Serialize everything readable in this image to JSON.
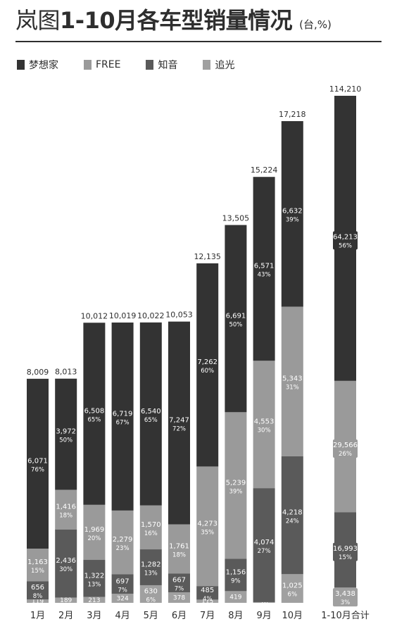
{
  "title": {
    "prefix": "岚图",
    "bold": "1-10月各车型销量情况",
    "unit": "(台,%)"
  },
  "colors": {
    "text": "#2e2e2e",
    "bar_text": "#ffffff"
  },
  "chart_data": {
    "type": "bar",
    "stacked": true,
    "categories": [
      "1月",
      "2月",
      "3月",
      "4月",
      "5月",
      "6月",
      "7月",
      "8月",
      "9月",
      "10月"
    ],
    "series": [
      {
        "name": "追光",
        "color": "#a0a0a0",
        "values": [
          119,
          189,
          213,
          324,
          630,
          378,
          115,
          419,
          26,
          1025
        ],
        "percent_labels": [
          "1%",
          "2%",
          "2%",
          "3%",
          "6%",
          "4%",
          "1%",
          "3%",
          "0%",
          "6%"
        ]
      },
      {
        "name": "知音",
        "color": "#5a5a5a",
        "values": [
          656,
          2436,
          1322,
          697,
          1282,
          667,
          485,
          1156,
          4074,
          4218
        ],
        "percent_labels": [
          "8%",
          "30%",
          "13%",
          "7%",
          "13%",
          "7%",
          "4%",
          "9%",
          "27%",
          "24%"
        ]
      },
      {
        "name": "FREE",
        "color": "#9a9a9a",
        "values": [
          1163,
          1416,
          1969,
          2279,
          1570,
          1761,
          4273,
          5239,
          4553,
          5343
        ],
        "percent_labels": [
          "15%",
          "18%",
          "20%",
          "23%",
          "16%",
          "18%",
          "35%",
          "39%",
          "30%",
          "31%"
        ]
      },
      {
        "name": "梦想家",
        "color": "#333333",
        "values": [
          6071,
          3972,
          6508,
          6719,
          6540,
          7247,
          7262,
          6691,
          6571,
          6632
        ],
        "percent_labels": [
          "76%",
          "50%",
          "65%",
          "67%",
          "65%",
          "72%",
          "60%",
          "50%",
          "43%",
          "39%"
        ]
      }
    ],
    "totals": [
      8009,
      8013,
      10012,
      10019,
      10022,
      10053,
      12135,
      13505,
      15224,
      17218
    ],
    "total_labels": [
      "8,009",
      "8,013",
      "10,012",
      "10,019",
      "10,022",
      "10,053",
      "12,135",
      "13,505",
      "15,224",
      "17,218"
    ],
    "summary": {
      "category": "1-10月合计",
      "total": 114210,
      "total_label": "114,210",
      "values": [
        3438,
        16993,
        29566,
        64213
      ],
      "value_labels": [
        "3,438",
        "16,993",
        "29,566",
        "64,213"
      ],
      "percent_labels": [
        "3%",
        "15%",
        "26%",
        "56%"
      ]
    },
    "ylim": [
      0,
      17218
    ]
  },
  "legend": [
    {
      "label": "梦想家",
      "color": "#333333"
    },
    {
      "label": "FREE",
      "color": "#9a9a9a"
    },
    {
      "label": "知音",
      "color": "#5a5a5a"
    },
    {
      "label": "追光",
      "color": "#a0a0a0"
    }
  ]
}
